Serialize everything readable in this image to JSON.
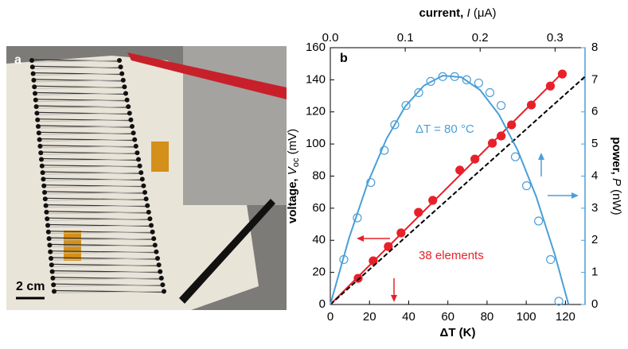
{
  "panel_a": {
    "label": "a",
    "scale_bar": "2 cm"
  },
  "chart_data": {
    "type": "scatter",
    "panel_label": "b",
    "xlabel": "ΔT (K)",
    "x2label": [
      "current, ",
      "I",
      " (μA)"
    ],
    "ylabel": [
      "voltage, ",
      "V",
      "oc",
      " (mV)"
    ],
    "y2label": [
      "power, ",
      "P",
      " (nW)"
    ],
    "xlim": [
      0,
      130
    ],
    "xticks": [
      0,
      20,
      40,
      60,
      80,
      100,
      120
    ],
    "x2lim": [
      0,
      0.34
    ],
    "x2ticks": [
      {
        "value": 0,
        "label": "0.0"
      },
      0.1,
      0.2,
      0.3
    ],
    "ylim": [
      0,
      160
    ],
    "yticks": [
      0,
      20,
      40,
      60,
      80,
      100,
      120,
      140,
      160
    ],
    "y2lim": [
      0,
      8
    ],
    "y2ticks": [
      0,
      1,
      2,
      3,
      4,
      5,
      6,
      7,
      8
    ],
    "annotations": [
      {
        "text": "ΔT = 80 °C",
        "color": "#4a9fd8"
      },
      {
        "text": "38 elements",
        "color": "#e8202a"
      }
    ],
    "series": [
      {
        "marker": "filled",
        "color": "#e8202a",
        "x": [
          14.2,
          21.9,
          29.6,
          36.1,
          45.0,
          52.3,
          66.1,
          73.8,
          82.7,
          87.2,
          92.5,
          102.6,
          112.3,
          118.4
        ],
        "values": [
          16.3,
          27.2,
          36.1,
          44.6,
          57.4,
          64.9,
          83.7,
          90.6,
          100.5,
          105,
          111.9,
          124.3,
          136.1,
          143.6
        ]
      },
      {
        "marker": "line",
        "color": "#e8202a",
        "x": [
          0,
          119
        ],
        "values": [
          0,
          145
        ]
      },
      {
        "marker": "dashed",
        "color": "#000000",
        "x": [
          0,
          130
        ],
        "values": [
          0,
          142
        ]
      },
      {
        "marker": "open",
        "color": "#4a9fd8",
        "axis": "y2",
        "xaxis": "x2",
        "x": [
          0.018,
          0.036,
          0.054,
          0.072,
          0.086,
          0.101,
          0.118,
          0.134,
          0.15,
          0.166,
          0.182,
          0.198,
          0.213,
          0.228,
          0.247,
          0.262,
          0.278,
          0.294,
          0.305
        ],
        "values": [
          1.4,
          2.7,
          3.8,
          4.8,
          5.6,
          6.2,
          6.6,
          6.95,
          7.1,
          7.1,
          7.0,
          6.9,
          6.6,
          6.2,
          4.6,
          3.7,
          2.6,
          1.4,
          0.1
        ]
      },
      {
        "marker": "line",
        "color": "#4a9fd8",
        "axis": "y2",
        "xaxis": "x2",
        "x": [
          0,
          0.025,
          0.05,
          0.075,
          0.1,
          0.125,
          0.15,
          0.175,
          0.2,
          0.225,
          0.25,
          0.275,
          0.3,
          0.318
        ],
        "values": [
          0,
          2.07,
          3.79,
          5.16,
          6.17,
          6.82,
          7.13,
          7.08,
          6.68,
          5.92,
          4.81,
          3.35,
          1.53,
          0
        ]
      }
    ]
  }
}
